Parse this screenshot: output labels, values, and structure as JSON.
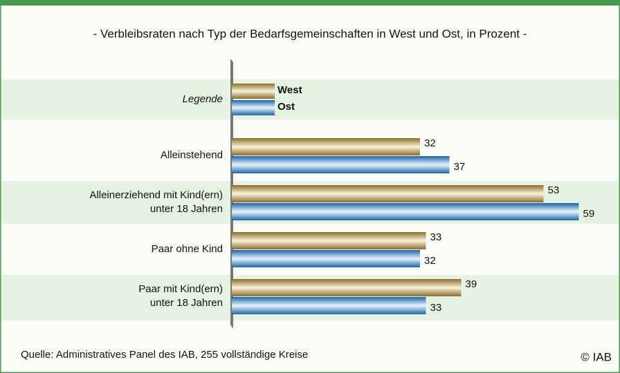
{
  "chart_data": {
    "type": "bar",
    "orientation": "horizontal",
    "subtitle": "- Verbleibsraten nach Typ der Bedarfsgemeinschaften in West und Ost, in Prozent -",
    "legend_title": "Legende",
    "categories": [
      [
        "Alleinstehend"
      ],
      [
        "Alleinerziehend mit Kind(ern)",
        "unter 18 Jahren"
      ],
      [
        "Paar ohne Kind"
      ],
      [
        "Paar mit Kind(ern)",
        "unter 18 Jahren"
      ]
    ],
    "series": [
      {
        "name": "West",
        "color": "#b8a060",
        "values": [
          32,
          53,
          33,
          39
        ]
      },
      {
        "name": "Ost",
        "color": "#3a8cc8",
        "values": [
          37,
          59,
          32,
          33
        ]
      }
    ],
    "source": "Quelle: Administratives Panel des IAB, 255 vollständige Kreise",
    "copyright": "© IAB"
  }
}
